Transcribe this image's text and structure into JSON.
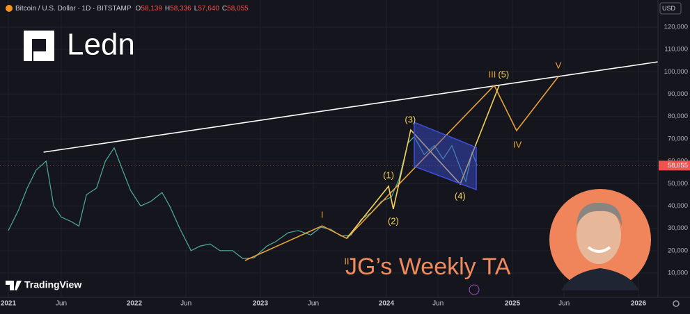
{
  "brand": "Ledn",
  "platform": "TradingView",
  "show_title": "JG’s Weekly TA",
  "currency": "USD",
  "header": {
    "interval": "1D",
    "exchange": "BITSTAMP",
    "ohlc": [
      {
        "key": "O",
        "value": "58,139"
      },
      {
        "key": "H",
        "value": "58,336"
      },
      {
        "key": "L",
        "value": "57,640"
      },
      {
        "key": "C",
        "value": "58,055"
      }
    ]
  },
  "chart_data": {
    "type": "line",
    "x": [
      2021.0,
      2021.08,
      2021.15,
      2021.22,
      2021.3,
      2021.36,
      2021.42,
      2021.5,
      2021.56,
      2021.62,
      2021.7,
      2021.77,
      2021.84,
      2021.9,
      2021.97,
      2022.05,
      2022.13,
      2022.22,
      2022.28,
      2022.36,
      2022.45,
      2022.52,
      2022.6,
      2022.68,
      2022.78,
      2022.86,
      2022.95,
      2023.05,
      2023.12,
      2023.22,
      2023.3,
      2023.4,
      2023.48,
      2023.56,
      2023.64,
      2023.72,
      2023.8,
      2023.88,
      2023.96,
      2024.04,
      2024.1,
      2024.17,
      2024.22,
      2024.3,
      2024.38,
      2024.45,
      2024.52,
      2024.58,
      2024.63,
      2024.68,
      2024.72
    ],
    "series": [
      {
        "name": "Bitcoin / U.S. Dollar",
        "color": "#4fae9a",
        "values": [
          29000,
          38000,
          48000,
          56000,
          60000,
          40000,
          35000,
          33000,
          31000,
          45000,
          48000,
          60000,
          66000,
          57000,
          47000,
          40000,
          42000,
          46000,
          40000,
          30000,
          20000,
          22000,
          23000,
          20000,
          20000,
          16500,
          16800,
          22000,
          24000,
          28000,
          29000,
          27000,
          30500,
          29500,
          26500,
          27000,
          34000,
          37000,
          42000,
          44000,
          52000,
          68000,
          71000,
          63000,
          67000,
          61000,
          67000,
          58000,
          51000,
          64000,
          58055
        ]
      }
    ],
    "last_price": {
      "value": 58055,
      "label": "58,055"
    },
    "xlim": [
      2020.934,
      2026.155
    ],
    "xticks": [
      {
        "value": 2021,
        "label": "2021"
      },
      {
        "value": 2021.42,
        "label": "Jun"
      },
      {
        "value": 2022,
        "label": "2022"
      },
      {
        "value": 2022.41,
        "label": "Jun"
      },
      {
        "value": 2023,
        "label": "2023"
      },
      {
        "value": 2023.42,
        "label": "Jun"
      },
      {
        "value": 2024,
        "label": "2024"
      },
      {
        "value": 2024.41,
        "label": "Jun"
      },
      {
        "value": 2025,
        "label": "2025"
      },
      {
        "value": 2025.41,
        "label": "Jun"
      },
      {
        "value": 2026,
        "label": "2026"
      }
    ],
    "ylim": [
      -875,
      132105
    ],
    "yticks": [
      {
        "value": 10000,
        "label": "10,000"
      },
      {
        "value": 20000,
        "label": "20,000"
      },
      {
        "value": 30000,
        "label": "30,000"
      },
      {
        "value": 40000,
        "label": "40,000"
      },
      {
        "value": 50000,
        "label": "50,000"
      },
      {
        "value": 60000,
        "label": "60,000"
      },
      {
        "value": 70000,
        "label": "70,000"
      },
      {
        "value": 80000,
        "label": "80,000"
      },
      {
        "value": 90000,
        "label": "90,000"
      },
      {
        "value": 100000,
        "label": "100,000"
      },
      {
        "value": 110000,
        "label": "110,000"
      },
      {
        "value": 120000,
        "label": "120,000"
      }
    ],
    "grid": true,
    "drawings": [
      {
        "color": "#ffffff",
        "x": [
          2021.28,
          2026.155
        ],
        "y": [
          64060,
          104450
        ]
      },
      {
        "color": "#e9a23b",
        "x": [
          2022.878,
          2023.49,
          2023.685,
          2024.856,
          2025.033,
          2025.365
        ],
        "y": [
          15600,
          31100,
          25500,
          93900,
          73700,
          97900
        ]
      },
      {
        "color": "#f3d15a",
        "x": [
          2023.685,
          2024.017,
          2024.055,
          2024.193,
          2024.586,
          2024.895
        ],
        "y": [
          25500,
          48800,
          38600,
          74000,
          49800,
          93900
        ]
      },
      {
        "color": "#3b4fd8",
        "fill": "rgba(60,80,220,0.45)",
        "x": [
          2024.221,
          2024.713,
          2024.713,
          2024.221
        ],
        "y": [
          77400,
          66200,
          47300,
          57700
        ]
      }
    ],
    "annotations": [
      {
        "text": "I",
        "x": 2023.49,
        "y": 35800,
        "color": "#e9a23b"
      },
      {
        "text": "II",
        "x": 2023.685,
        "y": 14970,
        "color": "#e9a23b"
      },
      {
        "text": "(1)",
        "x": 2024.017,
        "y": 53500,
        "color": "#f3d15a"
      },
      {
        "text": "(2)",
        "x": 2024.055,
        "y": 33000,
        "color": "#f3d15a"
      },
      {
        "text": "(3)",
        "x": 2024.19,
        "y": 78400,
        "color": "#f3d15a"
      },
      {
        "text": "(4)",
        "x": 2024.585,
        "y": 44200,
        "color": "#f3d15a"
      },
      {
        "text": "III",
        "x": 2024.84,
        "y": 98600,
        "color": "#e9a23b"
      },
      {
        "text": "(5)",
        "x": 2024.93,
        "y": 98600,
        "color": "#f3d15a"
      },
      {
        "text": "IV",
        "x": 2025.04,
        "y": 67200,
        "color": "#e9a23b"
      },
      {
        "text": "V",
        "x": 2025.365,
        "y": 102600,
        "color": "#e9a23b"
      }
    ]
  }
}
